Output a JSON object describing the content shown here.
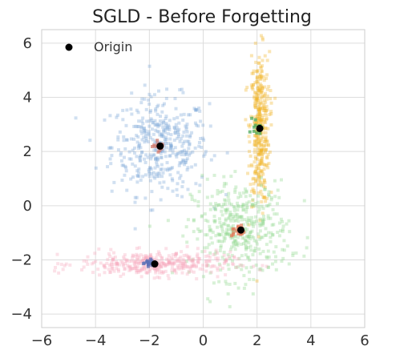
{
  "chart_data": {
    "type": "scatter",
    "title": "SGLD - Before Forgetting",
    "xlabel": "",
    "ylabel": "",
    "xlim": [
      -6,
      6
    ],
    "ylim": [
      -4.5,
      6.5
    ],
    "xticks": [
      -6,
      -4,
      -2,
      0,
      2,
      4,
      6
    ],
    "yticks": [
      -4,
      -2,
      0,
      2,
      4,
      6
    ],
    "grid": true,
    "legend": {
      "position": "top-left",
      "entries": [
        {
          "label": "Origin",
          "color": "#000000",
          "marker": "circle"
        }
      ]
    },
    "origin_points": [
      {
        "x": -1.6,
        "y": 2.2
      },
      {
        "x": 2.1,
        "y": 2.85
      },
      {
        "x": 1.4,
        "y": -0.9
      },
      {
        "x": -1.8,
        "y": -2.15
      }
    ],
    "sample_clusters": [
      {
        "color": "#7ba7d6",
        "center": [
          -1.6,
          2.2
        ],
        "spread": [
          0.9,
          0.9
        ],
        "count": 420
      },
      {
        "color": "#f0b428",
        "center": [
          2.1,
          2.85
        ],
        "spread": [
          0.18,
          1.4
        ],
        "count": 380
      },
      {
        "color": "#8fd68c",
        "center": [
          1.4,
          -0.9
        ],
        "spread": [
          0.9,
          0.9
        ],
        "count": 420
      },
      {
        "color": "#f7a8bd",
        "center": [
          -1.8,
          -2.15
        ],
        "spread": [
          1.4,
          0.22
        ],
        "count": 380
      }
    ],
    "highlight_clusters": [
      {
        "color": "#d07a6e",
        "center": [
          -1.6,
          2.2
        ],
        "spread": [
          0.12,
          0.1
        ],
        "count": 20
      },
      {
        "color": "#4ba85a",
        "center": [
          2.0,
          2.95
        ],
        "spread": [
          0.08,
          0.15
        ],
        "count": 18
      },
      {
        "color": "#e07a5a",
        "center": [
          1.3,
          -0.95
        ],
        "spread": [
          0.12,
          0.12
        ],
        "count": 18
      },
      {
        "color": "#5a6fb5",
        "center": [
          -2.0,
          -2.1
        ],
        "spread": [
          0.12,
          0.06
        ],
        "count": 18
      }
    ]
  }
}
